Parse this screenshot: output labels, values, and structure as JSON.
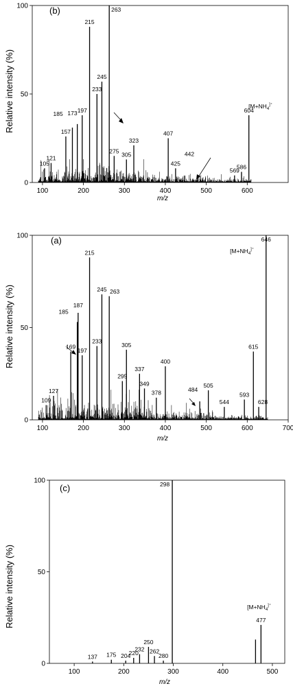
{
  "chart_data": [
    {
      "type": "bar",
      "panel_label": "(b)",
      "xlabel": "m/z",
      "ylabel": "Relative intensity (%)",
      "xlim": [
        75,
        700
      ],
      "ylim": [
        0,
        100
      ],
      "xticks": [
        100,
        200,
        300,
        400,
        500,
        600
      ],
      "yticks": [
        0,
        50,
        100
      ],
      "ion_label": {
        "text": "[M+NH",
        "sub": "4",
        "sup": "]⁺"
      },
      "peaks": [
        {
          "x": 105,
          "y": 8,
          "label": "105"
        },
        {
          "x": 121,
          "y": 11,
          "label": "121"
        },
        {
          "x": 157,
          "y": 26,
          "label": "157"
        },
        {
          "x": 173,
          "y": 31,
          "label": "173"
        },
        {
          "x": 185,
          "y": 33,
          "label": "185"
        },
        {
          "x": 197,
          "y": 38,
          "label": "197"
        },
        {
          "x": 215,
          "y": 88,
          "label": "215"
        },
        {
          "x": 233,
          "y": 50,
          "label": "233"
        },
        {
          "x": 245,
          "y": 57,
          "label": "245"
        },
        {
          "x": 263,
          "y": 100,
          "label": "263"
        },
        {
          "x": 275,
          "y": 15,
          "label": "275"
        },
        {
          "x": 305,
          "y": 13,
          "label": "305"
        },
        {
          "x": 323,
          "y": 21,
          "label": "323"
        },
        {
          "x": 407,
          "y": 25,
          "label": "407"
        },
        {
          "x": 425,
          "y": 8,
          "label": "425"
        },
        {
          "x": 442,
          "y": 1,
          "label": "442"
        },
        {
          "x": 569,
          "y": 4,
          "label": "569"
        },
        {
          "x": 586,
          "y": 6,
          "label": "586"
        },
        {
          "x": 604,
          "y": 38,
          "label": "604"
        }
      ]
    },
    {
      "type": "bar",
      "panel_label": "(a)",
      "xlabel": "m/z",
      "ylabel": "Relative intensity (%)",
      "xlim": [
        75,
        700
      ],
      "ylim": [
        0,
        100
      ],
      "xticks": [
        100,
        200,
        300,
        400,
        500,
        600,
        700
      ],
      "yticks": [
        0,
        50,
        100
      ],
      "ion_label": {
        "text": "[M+NH",
        "sub": "4",
        "sup": "]⁺"
      },
      "peaks": [
        {
          "x": 109,
          "y": 8,
          "label": "109"
        },
        {
          "x": 127,
          "y": 13,
          "label": "127"
        },
        {
          "x": 169,
          "y": 37,
          "label": "169"
        },
        {
          "x": 185,
          "y": 53,
          "label": "185"
        },
        {
          "x": 187,
          "y": 58,
          "label": "187"
        },
        {
          "x": 197,
          "y": 35,
          "label": "197"
        },
        {
          "x": 215,
          "y": 88,
          "label": "215"
        },
        {
          "x": 233,
          "y": 40,
          "label": "233"
        },
        {
          "x": 245,
          "y": 68,
          "label": "245"
        },
        {
          "x": 263,
          "y": 67,
          "label": "263"
        },
        {
          "x": 295,
          "y": 21,
          "label": "295"
        },
        {
          "x": 305,
          "y": 38,
          "label": "305"
        },
        {
          "x": 337,
          "y": 25,
          "label": "337"
        },
        {
          "x": 349,
          "y": 17,
          "label": "349"
        },
        {
          "x": 378,
          "y": 12,
          "label": "378"
        },
        {
          "x": 400,
          "y": 29,
          "label": "400"
        },
        {
          "x": 484,
          "y": 10,
          "label": "484"
        },
        {
          "x": 505,
          "y": 16,
          "label": "505"
        },
        {
          "x": 544,
          "y": 7,
          "label": "544"
        },
        {
          "x": 593,
          "y": 11,
          "label": "593"
        },
        {
          "x": 615,
          "y": 37,
          "label": "615"
        },
        {
          "x": 628,
          "y": 7,
          "label": "628"
        },
        {
          "x": 646,
          "y": 100,
          "label": "646"
        }
      ]
    },
    {
      "type": "bar",
      "panel_label": "(c)",
      "xlabel": "m/z",
      "ylabel": "Relative intensity (%)",
      "xlim": [
        50,
        525
      ],
      "ylim": [
        0,
        100
      ],
      "xticks": [
        100,
        200,
        300,
        400,
        500
      ],
      "yticks": [
        0,
        50,
        100
      ],
      "ion_label": {
        "text": "[M+NH",
        "sub": "4",
        "sup": "]⁺"
      },
      "peaks": [
        {
          "x": 137,
          "y": 1,
          "label": "137"
        },
        {
          "x": 175,
          "y": 2,
          "label": "175"
        },
        {
          "x": 204,
          "y": 1.5,
          "label": "204"
        },
        {
          "x": 220,
          "y": 3,
          "label": "220"
        },
        {
          "x": 232,
          "y": 5,
          "label": "232"
        },
        {
          "x": 250,
          "y": 9,
          "label": "250"
        },
        {
          "x": 262,
          "y": 4,
          "label": "262"
        },
        {
          "x": 280,
          "y": 1.5,
          "label": "280"
        },
        {
          "x": 298,
          "y": 100,
          "label": "298"
        },
        {
          "x": 466,
          "y": 13,
          "label": ""
        },
        {
          "x": 477,
          "y": 21,
          "label": "477"
        }
      ]
    }
  ]
}
